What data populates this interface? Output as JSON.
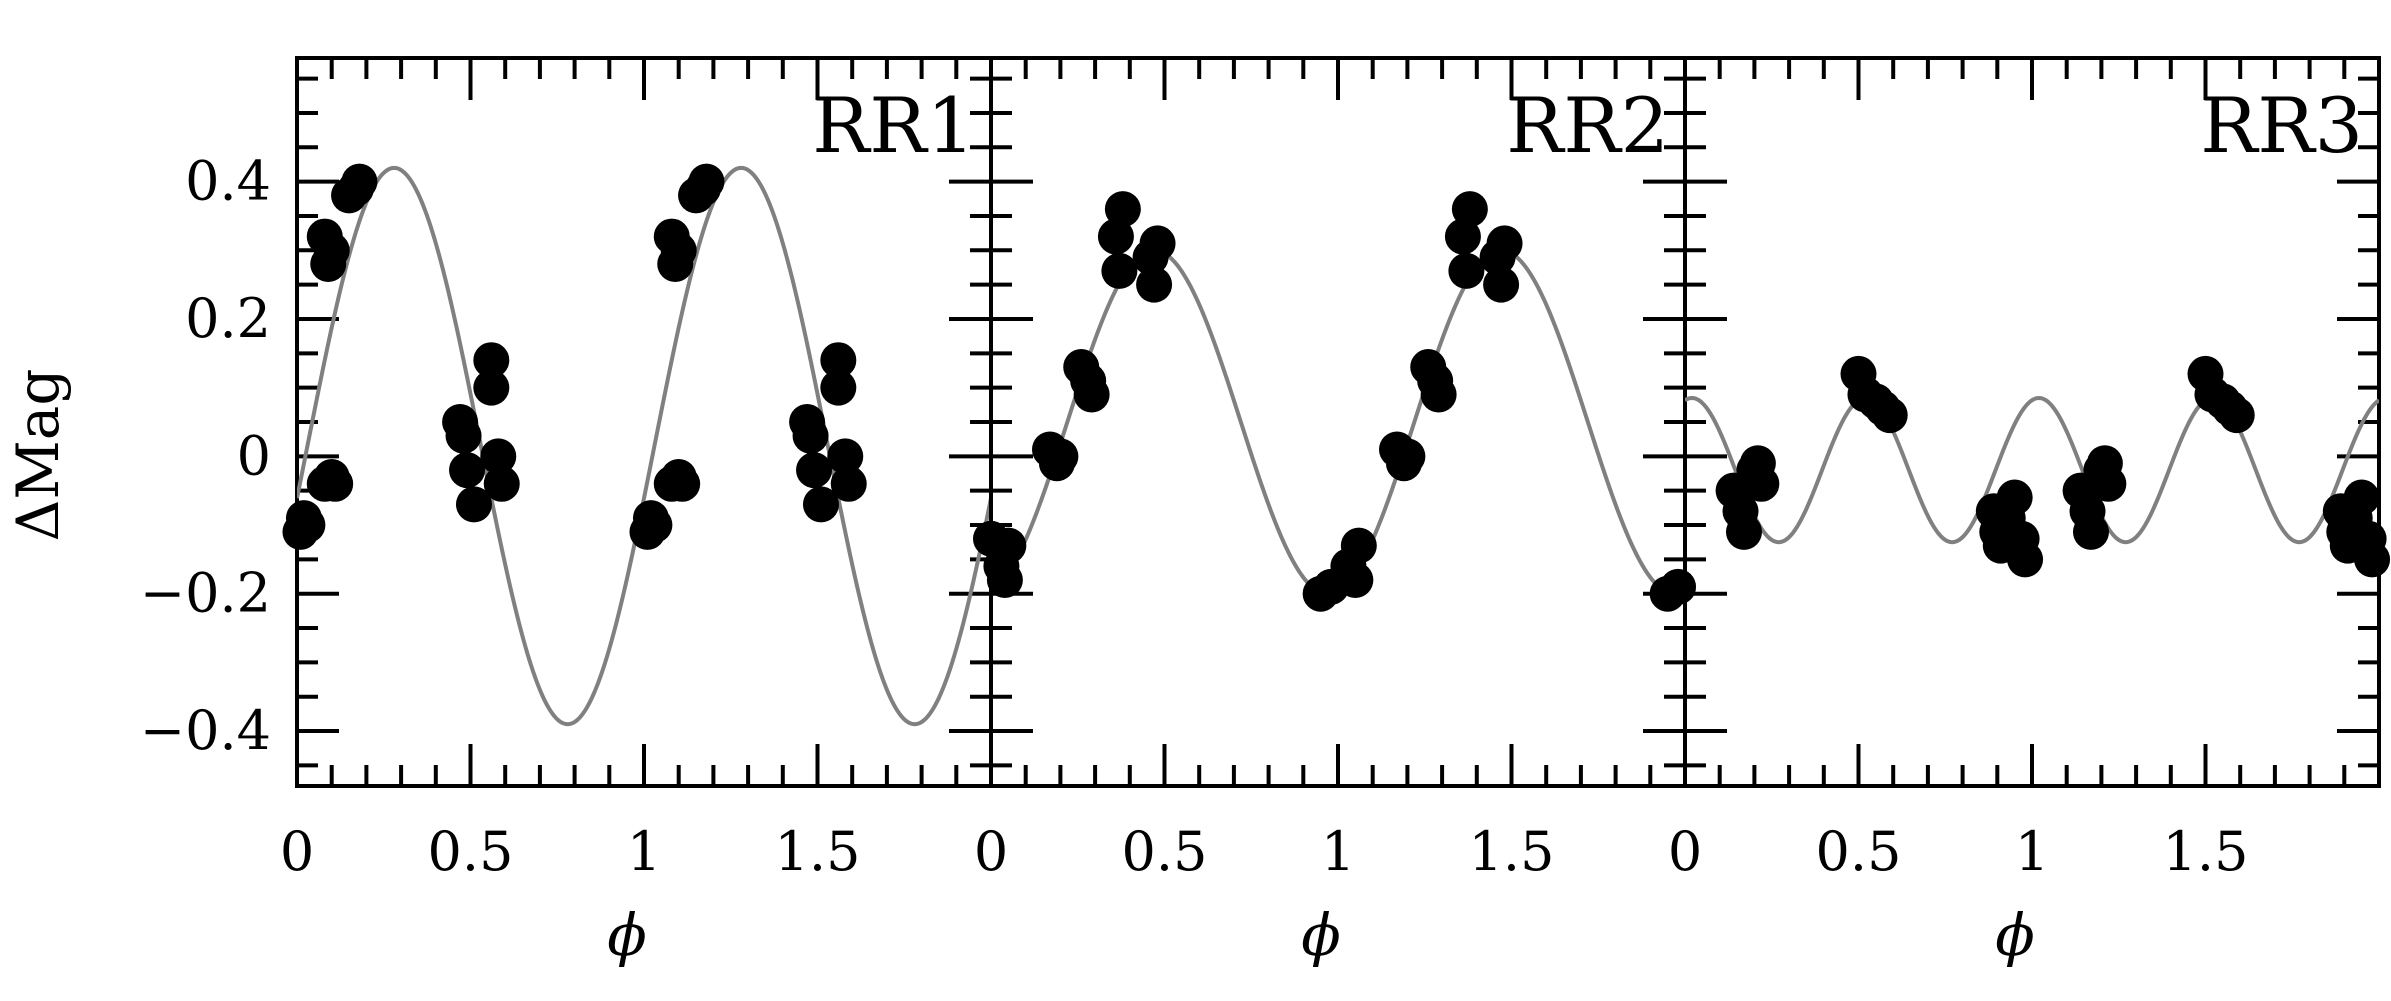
{
  "chart_data": {
    "type": "scatter",
    "ylabel": "ΔMag",
    "ylim": [
      -0.48,
      0.58
    ],
    "yticks": [
      -0.4,
      -0.2,
      0,
      0.2,
      0.4
    ],
    "ytick_labels": [
      "−0.4",
      "−0.2",
      "0",
      "0.2",
      "0.4"
    ],
    "yminor_step": 0.05,
    "xlim": [
      0,
      2
    ],
    "xticks": [
      0,
      0.5,
      1,
      1.5
    ],
    "xtick_labels": [
      "0",
      "0.5",
      "1",
      "1.5"
    ],
    "xminor_step": 0.1,
    "grid": false,
    "colors": {
      "points": "#000000",
      "curve": "#808080",
      "axes": "#000000"
    },
    "panels": [
      {
        "title": "RR1",
        "xlabel": "ϕ",
        "curve": {
          "mean": 0.015,
          "amplitude": 0.405,
          "peak_phase": 0.28,
          "color": "#808080"
        },
        "points": [
          {
            "x": 0.01,
            "y": -0.11
          },
          {
            "x": 0.02,
            "y": -0.09
          },
          {
            "x": 0.03,
            "y": -0.1
          },
          {
            "x": 0.08,
            "y": -0.04
          },
          {
            "x": 0.1,
            "y": -0.03
          },
          {
            "x": 0.11,
            "y": -0.04
          },
          {
            "x": 0.08,
            "y": 0.32
          },
          {
            "x": 0.1,
            "y": 0.3
          },
          {
            "x": 0.09,
            "y": 0.28
          },
          {
            "x": 0.15,
            "y": 0.38
          },
          {
            "x": 0.17,
            "y": 0.39
          },
          {
            "x": 0.18,
            "y": 0.4
          },
          {
            "x": 0.47,
            "y": 0.05
          },
          {
            "x": 0.48,
            "y": 0.03
          },
          {
            "x": 0.49,
            "y": -0.02
          },
          {
            "x": 0.51,
            "y": -0.07
          },
          {
            "x": 0.56,
            "y": 0.14
          },
          {
            "x": 0.56,
            "y": 0.1
          },
          {
            "x": 0.58,
            "y": 0.0
          },
          {
            "x": 0.59,
            "y": -0.04
          },
          {
            "x": 1.01,
            "y": -0.11
          },
          {
            "x": 1.02,
            "y": -0.09
          },
          {
            "x": 1.03,
            "y": -0.1
          },
          {
            "x": 1.08,
            "y": -0.04
          },
          {
            "x": 1.1,
            "y": -0.03
          },
          {
            "x": 1.11,
            "y": -0.04
          },
          {
            "x": 1.08,
            "y": 0.32
          },
          {
            "x": 1.1,
            "y": 0.3
          },
          {
            "x": 1.09,
            "y": 0.28
          },
          {
            "x": 1.15,
            "y": 0.38
          },
          {
            "x": 1.17,
            "y": 0.39
          },
          {
            "x": 1.18,
            "y": 0.4
          },
          {
            "x": 1.47,
            "y": 0.05
          },
          {
            "x": 1.48,
            "y": 0.03
          },
          {
            "x": 1.49,
            "y": -0.02
          },
          {
            "x": 1.51,
            "y": -0.07
          },
          {
            "x": 1.56,
            "y": 0.14
          },
          {
            "x": 1.56,
            "y": 0.1
          },
          {
            "x": 1.58,
            "y": 0.0
          },
          {
            "x": 1.59,
            "y": -0.04
          }
        ]
      },
      {
        "title": "RR2",
        "xlabel": "ϕ",
        "curve": {
          "mean": 0.05,
          "amplitude": 0.25,
          "peak_phase": 0.47,
          "color": "#808080"
        },
        "points": [
          {
            "x": 0.0,
            "y": -0.12
          },
          {
            "x": 0.03,
            "y": -0.16
          },
          {
            "x": 0.05,
            "y": -0.13
          },
          {
            "x": 0.04,
            "y": -0.18
          },
          {
            "x": 0.17,
            "y": 0.01
          },
          {
            "x": 0.19,
            "y": -0.01
          },
          {
            "x": 0.2,
            "y": 0.0
          },
          {
            "x": 0.26,
            "y": 0.13
          },
          {
            "x": 0.28,
            "y": 0.11
          },
          {
            "x": 0.29,
            "y": 0.09
          },
          {
            "x": 0.36,
            "y": 0.32
          },
          {
            "x": 0.38,
            "y": 0.36
          },
          {
            "x": 0.37,
            "y": 0.27
          },
          {
            "x": 0.46,
            "y": 0.29
          },
          {
            "x": 0.47,
            "y": 0.25
          },
          {
            "x": 0.48,
            "y": 0.31
          },
          {
            "x": 0.95,
            "y": -0.2
          },
          {
            "x": 0.98,
            "y": -0.19
          },
          {
            "x": 1.03,
            "y": -0.16
          },
          {
            "x": 1.05,
            "y": -0.18
          },
          {
            "x": 1.06,
            "y": -0.13
          },
          {
            "x": 1.17,
            "y": 0.01
          },
          {
            "x": 1.19,
            "y": -0.01
          },
          {
            "x": 1.2,
            "y": 0.0
          },
          {
            "x": 1.26,
            "y": 0.13
          },
          {
            "x": 1.28,
            "y": 0.11
          },
          {
            "x": 1.29,
            "y": 0.09
          },
          {
            "x": 1.36,
            "y": 0.32
          },
          {
            "x": 1.38,
            "y": 0.36
          },
          {
            "x": 1.37,
            "y": 0.27
          },
          {
            "x": 1.46,
            "y": 0.29
          },
          {
            "x": 1.47,
            "y": 0.25
          },
          {
            "x": 1.48,
            "y": 0.31
          },
          {
            "x": 1.95,
            "y": -0.2
          },
          {
            "x": 1.98,
            "y": -0.19
          }
        ]
      },
      {
        "title": "RR3",
        "xlabel": "ϕ",
        "curve": {
          "mean": -0.02,
          "amplitude": 0.105,
          "peak_phase": 0.02,
          "color": "#808080",
          "harmonic": 2
        },
        "points": [
          {
            "x": 0.14,
            "y": -0.05
          },
          {
            "x": 0.16,
            "y": -0.08
          },
          {
            "x": 0.17,
            "y": -0.11
          },
          {
            "x": 0.2,
            "y": -0.02
          },
          {
            "x": 0.21,
            "y": -0.01
          },
          {
            "x": 0.22,
            "y": -0.04
          },
          {
            "x": 0.5,
            "y": 0.12
          },
          {
            "x": 0.52,
            "y": 0.09
          },
          {
            "x": 0.55,
            "y": 0.08
          },
          {
            "x": 0.57,
            "y": 0.07
          },
          {
            "x": 0.59,
            "y": 0.06
          },
          {
            "x": 0.89,
            "y": -0.08
          },
          {
            "x": 0.9,
            "y": -0.11
          },
          {
            "x": 0.91,
            "y": -0.13
          },
          {
            "x": 0.93,
            "y": -0.09
          },
          {
            "x": 0.95,
            "y": -0.06
          },
          {
            "x": 0.97,
            "y": -0.12
          },
          {
            "x": 0.98,
            "y": -0.15
          },
          {
            "x": 1.14,
            "y": -0.05
          },
          {
            "x": 1.16,
            "y": -0.08
          },
          {
            "x": 1.17,
            "y": -0.11
          },
          {
            "x": 1.2,
            "y": -0.02
          },
          {
            "x": 1.21,
            "y": -0.01
          },
          {
            "x": 1.22,
            "y": -0.04
          },
          {
            "x": 1.5,
            "y": 0.12
          },
          {
            "x": 1.52,
            "y": 0.09
          },
          {
            "x": 1.55,
            "y": 0.08
          },
          {
            "x": 1.57,
            "y": 0.07
          },
          {
            "x": 1.59,
            "y": 0.06
          },
          {
            "x": 1.89,
            "y": -0.08
          },
          {
            "x": 1.9,
            "y": -0.11
          },
          {
            "x": 1.91,
            "y": -0.13
          },
          {
            "x": 1.93,
            "y": -0.09
          },
          {
            "x": 1.95,
            "y": -0.06
          },
          {
            "x": 1.97,
            "y": -0.12
          },
          {
            "x": 1.98,
            "y": -0.15
          }
        ]
      }
    ]
  }
}
